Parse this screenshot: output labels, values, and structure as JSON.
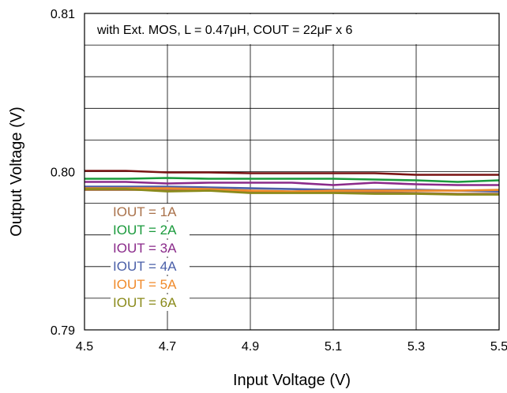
{
  "chart_data": {
    "type": "line",
    "title": "",
    "annotation": "with Ext. MOS, L = 0.47μH, COUT = 22μF x 6",
    "xlabel": "Input Voltage (V)",
    "ylabel": "Output Voltage (V)",
    "xlim": [
      4.5,
      5.5
    ],
    "ylim": [
      0.79,
      0.81
    ],
    "xticks": [
      "4.5",
      "4.7",
      "4.9",
      "5.1",
      "5.3",
      "5.5"
    ],
    "yticks": [
      "0.79",
      "0.80",
      "0.81"
    ],
    "grid": true,
    "legend_position": "lower-left",
    "x": [
      4.5,
      4.6,
      4.7,
      4.8,
      4.9,
      5.0,
      5.1,
      5.2,
      5.3,
      5.4,
      5.5
    ],
    "series": [
      {
        "name": "IOUT = 1A",
        "color": "#a9714a",
        "values": [
          0.79885,
          0.79885,
          0.79885,
          0.79885,
          0.79875,
          0.7987,
          0.7987,
          0.7987,
          0.79865,
          0.7986,
          0.7986
        ]
      },
      {
        "name": "IOUT = 2A",
        "color": "#1a9a3c",
        "values": [
          0.79955,
          0.79955,
          0.7996,
          0.79955,
          0.79955,
          0.79955,
          0.79955,
          0.7995,
          0.79945,
          0.79935,
          0.79945
        ]
      },
      {
        "name": "IOUT = 3A",
        "color": "#8a2a8a",
        "values": [
          0.79935,
          0.79935,
          0.79925,
          0.7993,
          0.7993,
          0.7993,
          0.79915,
          0.7993,
          0.7992,
          0.79915,
          0.79915
        ]
      },
      {
        "name": "IOUT = 4A",
        "color": "#4a5fa8",
        "values": [
          0.79905,
          0.79905,
          0.79905,
          0.799,
          0.79895,
          0.7989,
          0.79885,
          0.79885,
          0.79885,
          0.7988,
          0.79875
        ]
      },
      {
        "name": "IOUT = 5A",
        "color": "#f08a2a",
        "values": [
          0.79895,
          0.79895,
          0.79895,
          0.7989,
          0.7988,
          0.79875,
          0.7988,
          0.7988,
          0.7988,
          0.7988,
          0.79885
        ]
      },
      {
        "name": "IOUT = 6A",
        "color": "#8a8a1a",
        "values": [
          0.7989,
          0.7989,
          0.79875,
          0.7988,
          0.79865,
          0.79865,
          0.79865,
          0.7986,
          0.7986,
          0.79855,
          0.79855
        ]
      },
      {
        "name": "",
        "color": "#7a1414",
        "values": [
          0.80005,
          0.80005,
          0.79995,
          0.79995,
          0.7999,
          0.7999,
          0.7999,
          0.7999,
          0.7998,
          0.7998,
          0.7998
        ]
      }
    ]
  }
}
